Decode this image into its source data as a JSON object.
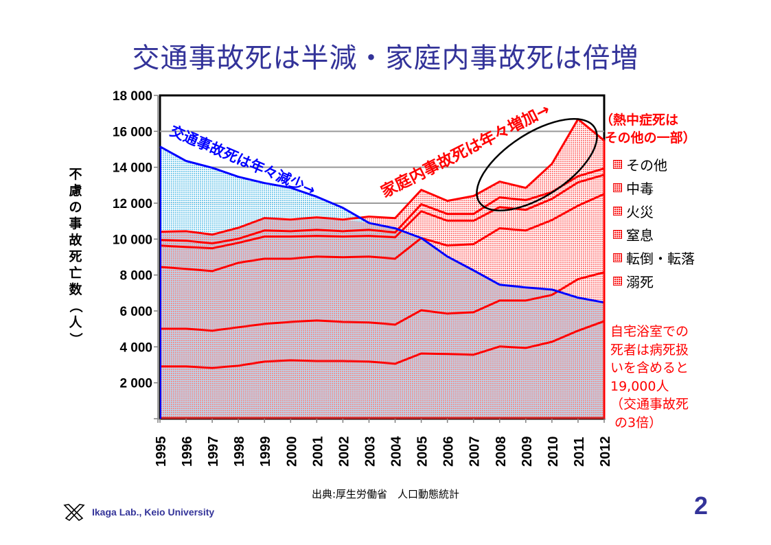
{
  "slide": {
    "title": "交通事故死は半減・家庭内事故死は倍増",
    "source": "出典:厚生労働省　人口動態統計",
    "lab_name": "Ikaga Lab., Keio University",
    "page_number": "2",
    "logo_icon": "crossed-hands-logo-icon"
  },
  "annotations": {
    "traffic": "交通事故死は年々減少→",
    "home": "家庭内事故死は年々増加→",
    "heatstroke": "（熱中症死は\n その他の一部）",
    "bathroom": "自宅浴室での\n死者は病死扱\nいを含めると\n19,000人\n（交通事故死\n の3倍）"
  },
  "chart_data": {
    "type": "area",
    "stacked": true,
    "title": "",
    "xlabel": "",
    "ylabel": "不慮の事故死亡数（人）",
    "ylabel_chars": [
      "不",
      "慮",
      "の",
      "事",
      "故",
      "死",
      "亡",
      "数",
      "（",
      "人",
      "）"
    ],
    "ylim": [
      0,
      18000
    ],
    "yticks": [
      2000,
      4000,
      6000,
      8000,
      10000,
      12000,
      14000,
      16000,
      18000
    ],
    "ytick_labels": [
      "2 000",
      "4 000",
      "6 000",
      "8 000",
      "10 000",
      "12 000",
      "14 000",
      "16 000",
      "18 000"
    ],
    "grid": true,
    "legend_position": "right",
    "x": [
      "1995",
      "1996",
      "1997",
      "1998",
      "1999",
      "2000",
      "2001",
      "2002",
      "2003",
      "2004",
      "2005",
      "2006",
      "2007",
      "2008",
      "2009",
      "2010",
      "2011",
      "2012"
    ],
    "traffic_series": {
      "name": "交通事故死",
      "color": "#0000ff",
      "fill": "#9ed8f0",
      "values": [
        15150,
        14350,
        13970,
        13470,
        13120,
        12860,
        12360,
        11740,
        10900,
        10600,
        10060,
        9030,
        8260,
        7460,
        7310,
        7190,
        6740,
        6470
      ]
    },
    "home_series_color": "#ff0000",
    "series": [
      {
        "name": "溺死",
        "values": [
          2910,
          2910,
          2830,
          2950,
          3180,
          3250,
          3210,
          3210,
          3180,
          3060,
          3630,
          3600,
          3560,
          4020,
          3940,
          4280,
          4900,
          5430
        ]
      },
      {
        "name": "転倒・転落",
        "values": [
          2100,
          2100,
          2070,
          2140,
          2100,
          2140,
          2260,
          2180,
          2180,
          2180,
          2410,
          2250,
          2370,
          2560,
          2640,
          2610,
          2870,
          2720
        ]
      },
      {
        "name": "窒息",
        "values": [
          3440,
          3330,
          3320,
          3590,
          3630,
          3520,
          3560,
          3600,
          3670,
          3670,
          4020,
          3790,
          3790,
          4020,
          3900,
          4170,
          4090,
          4360
        ]
      },
      {
        "name": "火災",
        "values": [
          1190,
          1220,
          1270,
          1110,
          1230,
          1230,
          1150,
          1150,
          1150,
          1190,
          1490,
          1380,
          1300,
          1180,
          1150,
          1180,
          1300,
          1070
        ]
      },
      {
        "name": "中毒",
        "values": [
          310,
          350,
          270,
          230,
          340,
          300,
          340,
          300,
          340,
          270,
          390,
          380,
          380,
          540,
          540,
          380,
          340,
          350
        ]
      },
      {
        "name": "その他",
        "values": [
          460,
          530,
          490,
          610,
          690,
          650,
          690,
          650,
          730,
          800,
          800,
          730,
          1000,
          880,
          680,
          1570,
          3180,
          1560
        ]
      }
    ],
    "legend": [
      "その他",
      "中毒",
      "火災",
      "窒息",
      "転倒・転落",
      "溺死"
    ]
  }
}
